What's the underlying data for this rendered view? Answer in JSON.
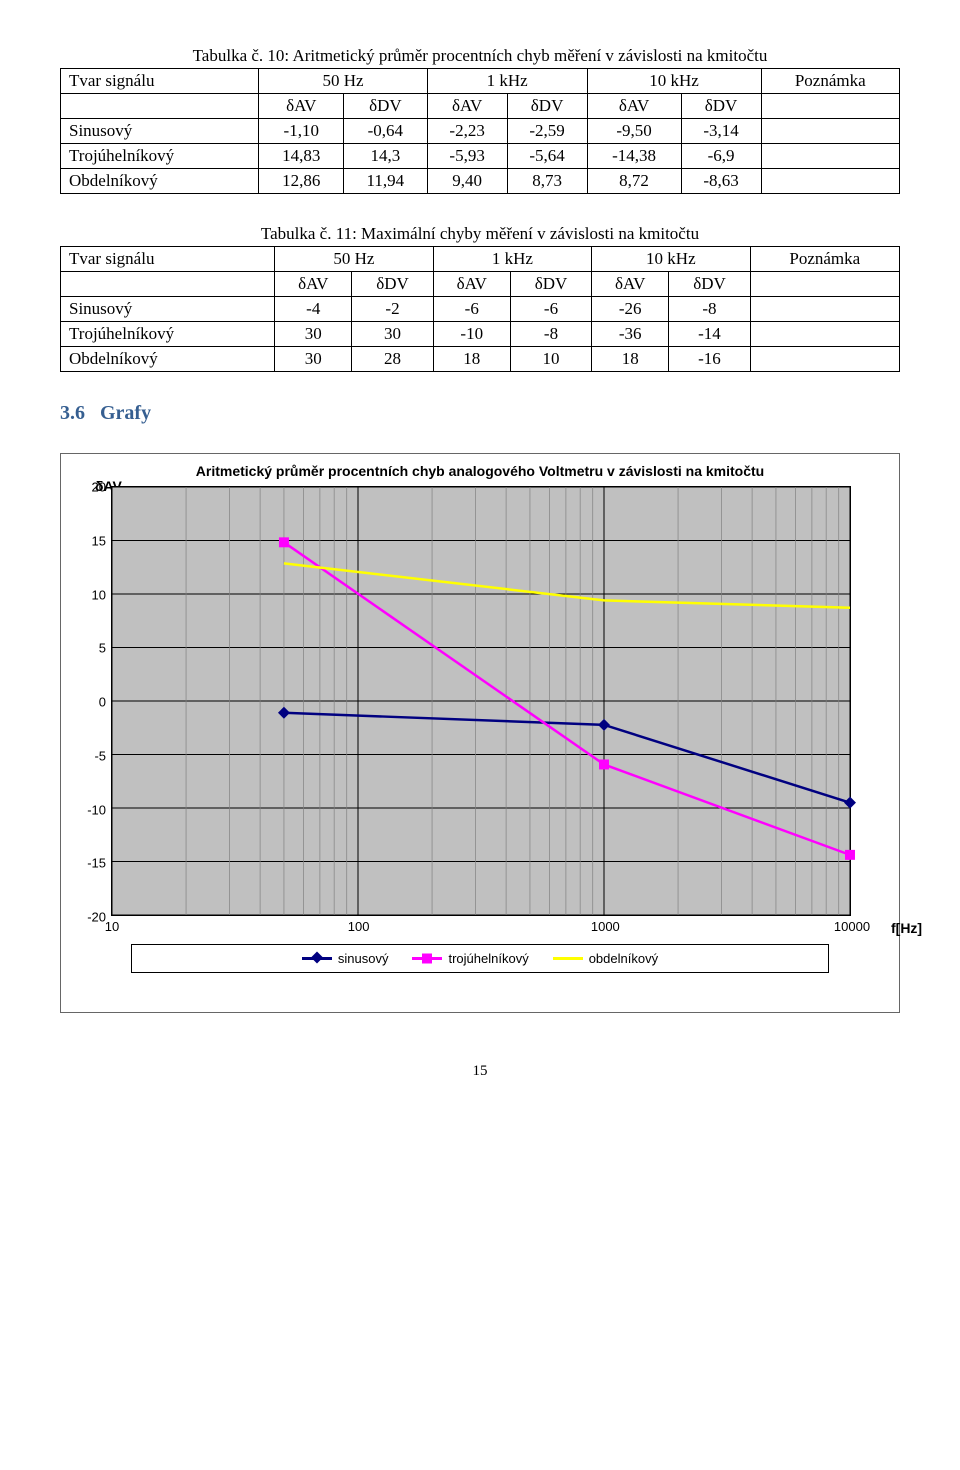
{
  "table1": {
    "caption": "Tabulka č. 10: Aritmetický průměr procentních chyb měření v závislosti na kmitočtu",
    "header_signal": "Tvar signálu",
    "freq_headers": [
      "50 Hz",
      "1 kHz",
      "10 kHz"
    ],
    "note_header": "Poznámka",
    "sub_headers": [
      "δAV",
      "δDV",
      "δAV",
      "δDV",
      "δAV",
      "δDV"
    ],
    "rows": [
      {
        "label": "Sinusový",
        "cells": [
          "-1,10",
          "-0,64",
          "-2,23",
          "-2,59",
          "-9,50",
          "-3,14"
        ],
        "note": ""
      },
      {
        "label": "Trojúhelníkový",
        "cells": [
          "14,83",
          "14,3",
          "-5,93",
          "-5,64",
          "-14,38",
          "-6,9"
        ],
        "note": ""
      },
      {
        "label": "Obdelníkový",
        "cells": [
          "12,86",
          "11,94",
          "9,40",
          "8,73",
          "8,72",
          "-8,63"
        ],
        "note": ""
      }
    ]
  },
  "table2": {
    "caption": "Tabulka č. 11: Maximální chyby měření v závislosti na kmitočtu",
    "header_signal": "Tvar signálu",
    "freq_headers": [
      "50 Hz",
      "1 kHz",
      "10 kHz"
    ],
    "note_header": "Poznámka",
    "sub_headers": [
      "δAV",
      "δDV",
      "δAV",
      "δDV",
      "δAV",
      "δDV"
    ],
    "rows": [
      {
        "label": "Sinusový",
        "cells": [
          "-4",
          "-2",
          "-6",
          "-6",
          "-26",
          "-8"
        ],
        "note": ""
      },
      {
        "label": "Trojúhelníkový",
        "cells": [
          "30",
          "30",
          "-10",
          "-8",
          "-36",
          "-14"
        ],
        "note": ""
      },
      {
        "label": "Obdelníkový",
        "cells": [
          "30",
          "28",
          "18",
          "10",
          "18",
          "-16"
        ],
        "note": ""
      }
    ]
  },
  "section": {
    "number": "3.6",
    "title": "Grafy"
  },
  "chart": {
    "type": "line",
    "title": "Aritmetický průměr procentních chyb analogového Voltmetru v závislosti na kmitočtu",
    "ylabel": "δAV",
    "xlabel": "f[Hz]",
    "x_scale": "log",
    "xlim": [
      10,
      10000
    ],
    "ylim": [
      -20,
      20
    ],
    "ytick_step": 5,
    "yticks": [
      20,
      15,
      10,
      5,
      0,
      -5,
      -10,
      -15,
      -20
    ],
    "xticks": [
      10,
      100,
      1000,
      10000
    ],
    "xtick_labels": [
      "10",
      "100",
      "1000",
      "10000"
    ],
    "minor_grid_color": "#808080",
    "major_grid_color": "#000000",
    "plot_bg": "#c0c0c0",
    "series": [
      {
        "name": "sinusový",
        "color": "#000080",
        "marker": "diamond",
        "line_width": 2.5,
        "points": [
          [
            50,
            -1.1
          ],
          [
            1000,
            -2.23
          ],
          [
            10000,
            -9.5
          ]
        ]
      },
      {
        "name": "trojúhelníkový",
        "color": "#ff00ff",
        "marker": "square",
        "line_width": 2.5,
        "points": [
          [
            50,
            14.83
          ],
          [
            1000,
            -5.93
          ],
          [
            10000,
            -14.38
          ]
        ]
      },
      {
        "name": "obdelníkový",
        "color": "#ffff00",
        "marker": "none",
        "line_width": 2.5,
        "points": [
          [
            50,
            12.86
          ],
          [
            1000,
            9.4
          ],
          [
            10000,
            8.72
          ]
        ]
      }
    ],
    "legend_labels": [
      "sinusový",
      "trojúhelníkový",
      "obdelníkový"
    ]
  },
  "page_number": "15"
}
